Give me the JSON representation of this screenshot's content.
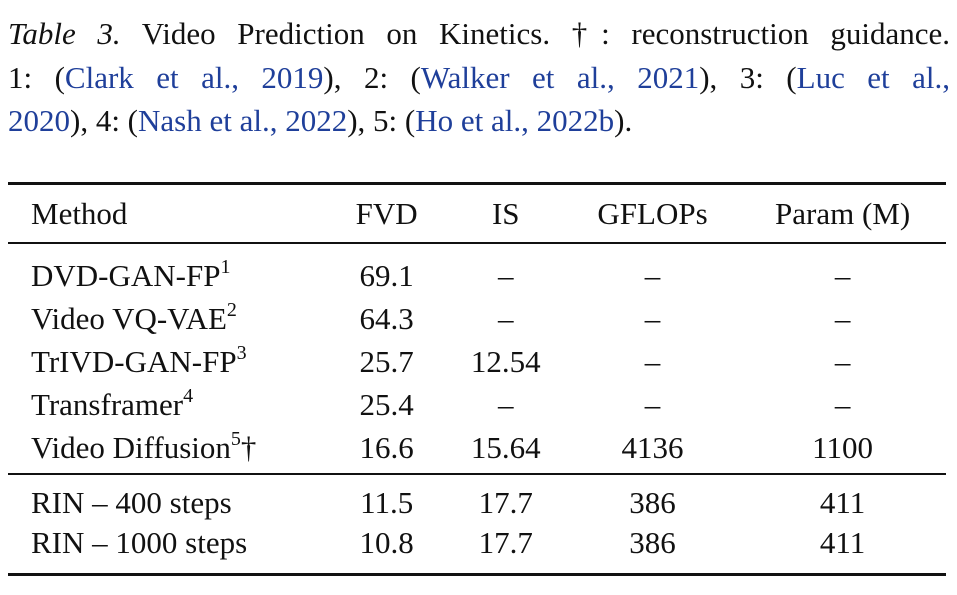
{
  "caption": {
    "label": "Table 3.",
    "text_1": " Video Prediction on Kinetics. †: reconstruction guidance.",
    "text_2a": "1: (",
    "cite_1": "Clark et al., 2019",
    "text_2b": "), 2: (",
    "cite_2": "Walker et al., 2021",
    "text_2c": "), 3: (",
    "cite_3a": "Luc et al.,",
    "cite_3b": "2020",
    "text_3a": "), 4: (",
    "cite_4": "Nash et al., 2022",
    "text_3b": "), 5: (",
    "cite_5": "Ho et al., 2022b",
    "text_3c": ")."
  },
  "table": {
    "headers": [
      "Method",
      "FVD",
      "IS",
      "GFLOPs",
      "Param (M)"
    ],
    "rows_group1": [
      {
        "method": "DVD-GAN-FP",
        "sup": "1",
        "dagger": "",
        "fvd": "69.1",
        "is": "–",
        "gflops": "–",
        "param": "–"
      },
      {
        "method": "Video VQ-VAE",
        "sup": "2",
        "dagger": "",
        "fvd": "64.3",
        "is": "–",
        "gflops": "–",
        "param": "–"
      },
      {
        "method": "TrIVD-GAN-FP",
        "sup": "3",
        "dagger": "",
        "fvd": "25.7",
        "is": "12.54",
        "gflops": "–",
        "param": "–"
      },
      {
        "method": "Transframer",
        "sup": "4",
        "dagger": "",
        "fvd": "25.4",
        "is": "–",
        "gflops": "–",
        "param": "–"
      },
      {
        "method": "Video Diffusion",
        "sup": "5",
        "dagger": "†",
        "fvd": "16.6",
        "is": "15.64",
        "gflops": "4136",
        "param": "1100"
      }
    ],
    "rows_group2": [
      {
        "method": "RIN – 400 steps",
        "fvd": "11.5",
        "is": "17.7",
        "gflops": "386",
        "param": "411"
      },
      {
        "method": "RIN – 1000 steps",
        "fvd": "10.8",
        "is": "17.7",
        "gflops": "386",
        "param": "411"
      }
    ]
  }
}
